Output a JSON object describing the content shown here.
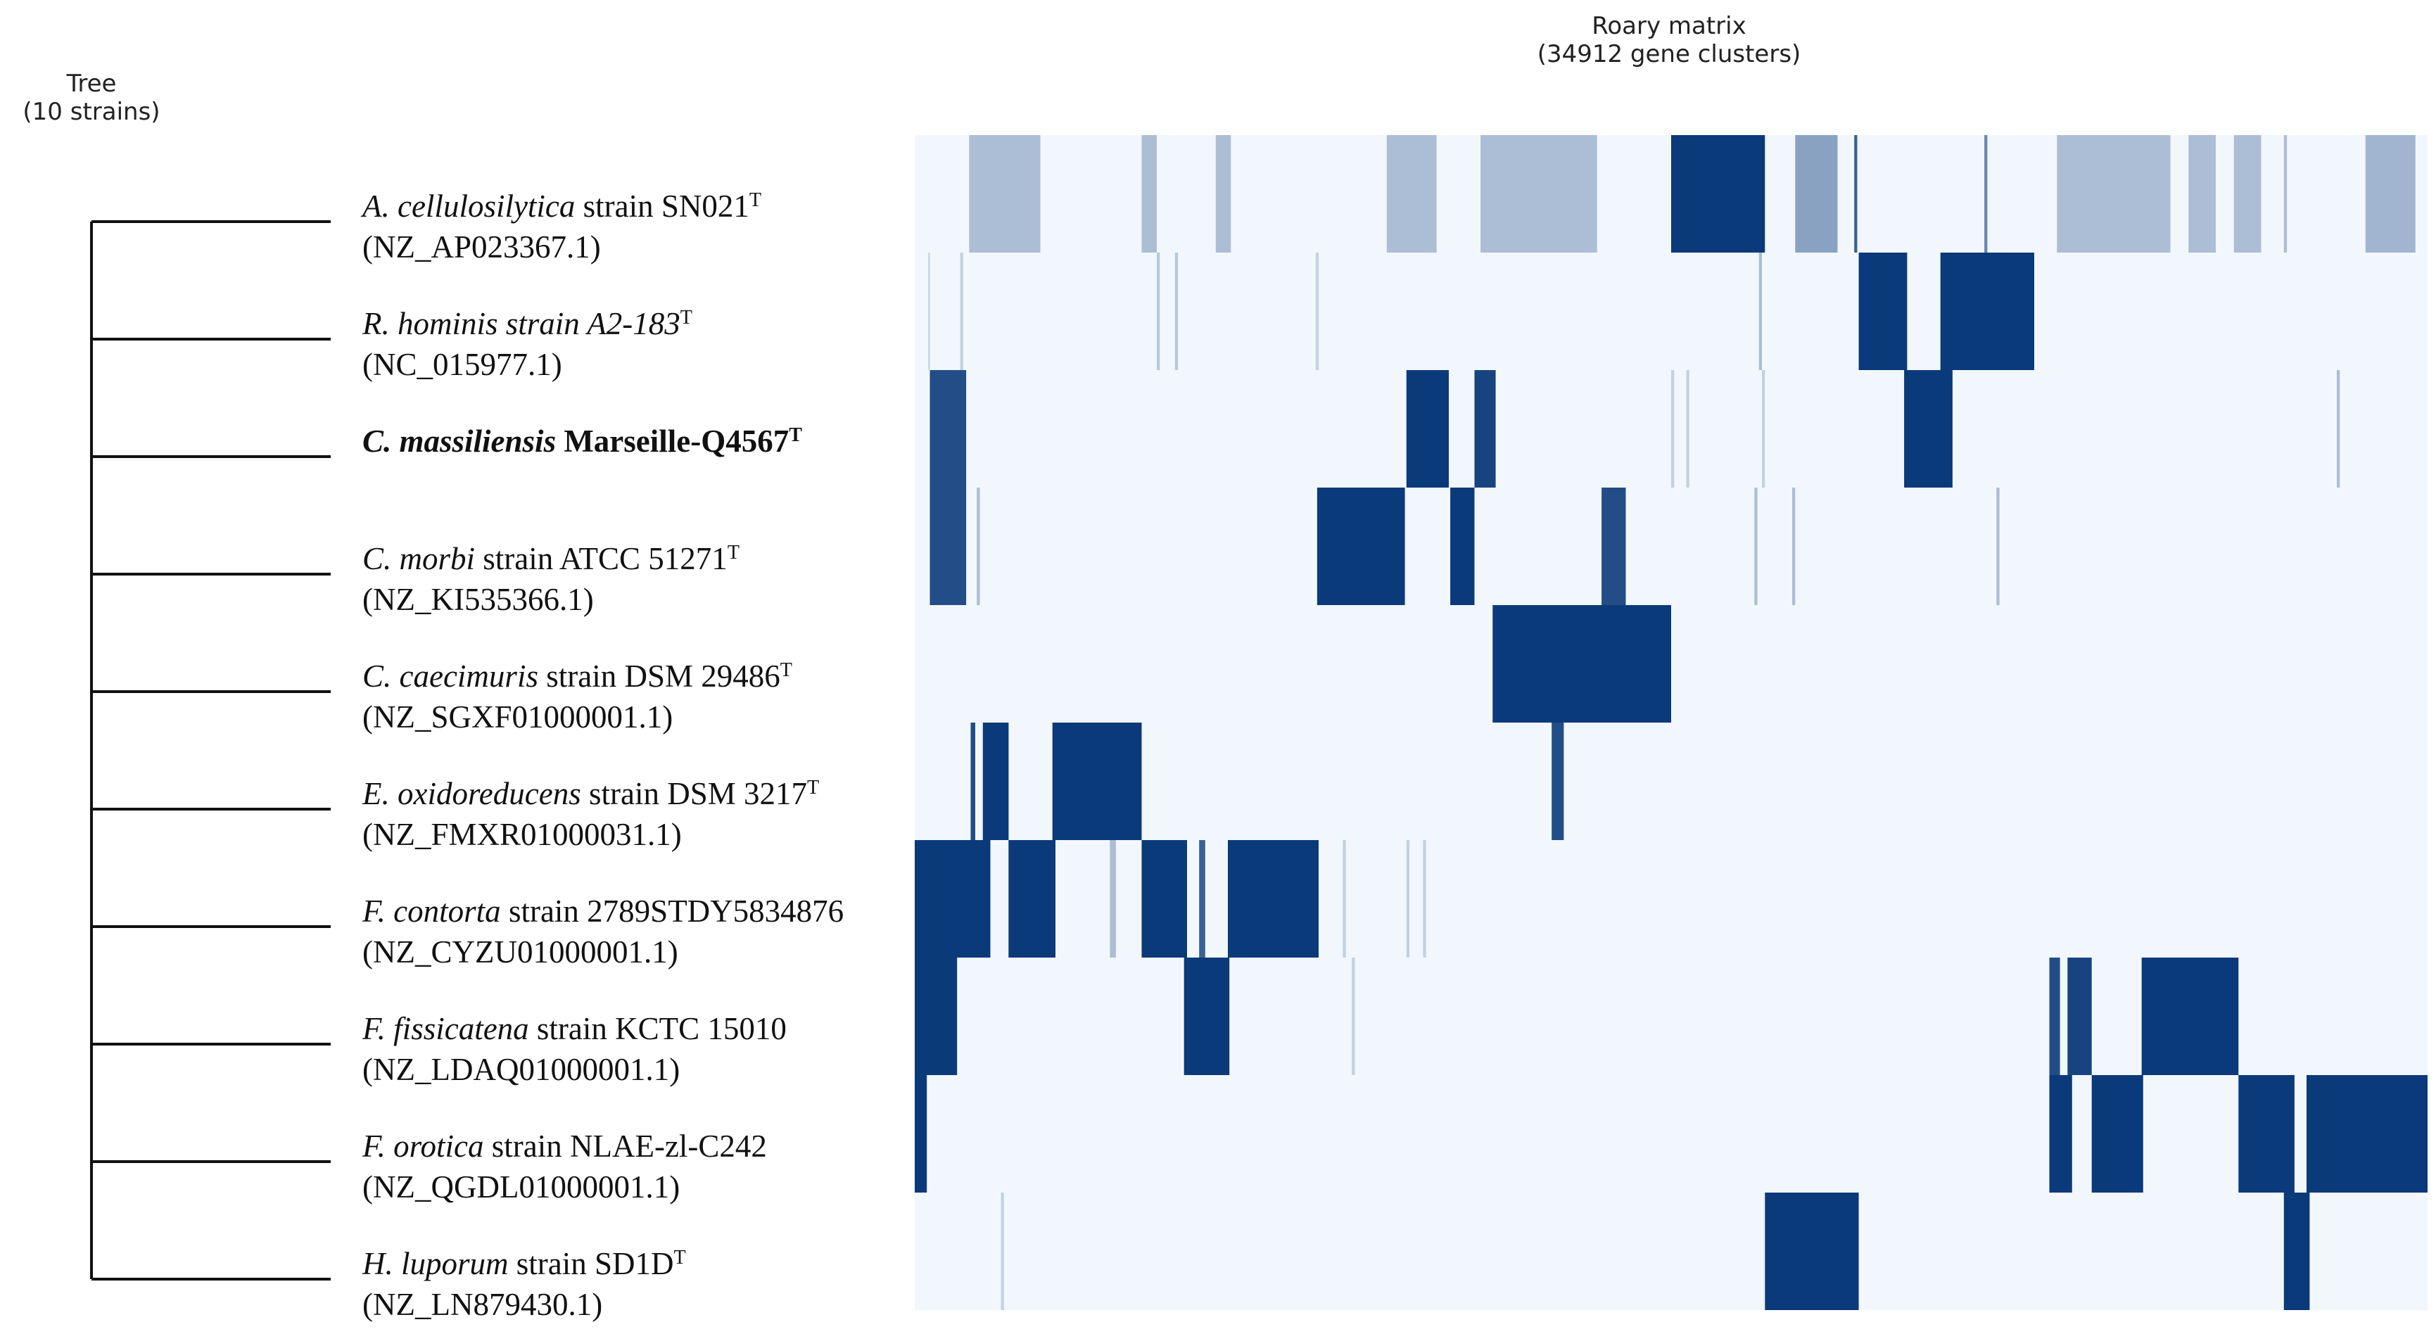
{
  "tree_header": {
    "title": "Tree",
    "subtitle": "(10 strains)"
  },
  "matrix_header": {
    "title": "Roary matrix",
    "subtitle": "(34912 gene clusters)"
  },
  "colors": {
    "background": "#f2f7fd",
    "presence": "#0b3a7a",
    "line": "#111111"
  },
  "strains": [
    {
      "species": "A. cellulosilytica",
      "label": " strain SN021",
      "sup": "T",
      "accession": "(NZ_AP023367.1)",
      "bold": false,
      "segments": [
        [
          0.036,
          0.083,
          0.3
        ],
        [
          0.15,
          0.16,
          0.3
        ],
        [
          0.199,
          0.209,
          0.3
        ],
        [
          0.312,
          0.345,
          0.3
        ],
        [
          0.374,
          0.451,
          0.3
        ],
        [
          0.5,
          0.562,
          1
        ],
        [
          0.582,
          0.61,
          0.45
        ],
        [
          0.621,
          0.623,
          0.8
        ],
        [
          0.707,
          0.709,
          0.6
        ],
        [
          0.755,
          0.83,
          0.3
        ],
        [
          0.842,
          0.86,
          0.3
        ],
        [
          0.872,
          0.89,
          0.3
        ],
        [
          0.905,
          0.907,
          0.3
        ],
        [
          0.959,
          0.992,
          0.35
        ]
      ]
    },
    {
      "species": "R. hominis",
      "label": " strain A2-183",
      "sup": "T",
      "accession": "(NC_015977.1)",
      "bold": false,
      "italicLabel": true,
      "segments": [
        [
          0.009,
          0.01,
          0.2
        ],
        [
          0.03,
          0.032,
          0.2
        ],
        [
          0.16,
          0.162,
          0.25
        ],
        [
          0.172,
          0.174,
          0.25
        ],
        [
          0.265,
          0.267,
          0.2
        ],
        [
          0.558,
          0.56,
          0.3
        ],
        [
          0.624,
          0.656,
          1
        ],
        [
          0.678,
          0.74,
          1
        ]
      ]
    },
    {
      "species": "C. massiliensis",
      "label": " Marseille-Q4567",
      "sup": "T",
      "accession": "",
      "bold": true,
      "segments": [
        [
          0.01,
          0.034,
          0.9
        ],
        [
          0.325,
          0.353,
          1
        ],
        [
          0.37,
          0.384,
          0.95
        ],
        [
          0.5,
          0.502,
          0.2
        ],
        [
          0.51,
          0.512,
          0.2
        ],
        [
          0.56,
          0.562,
          0.2
        ],
        [
          0.654,
          0.686,
          1
        ],
        [
          0.94,
          0.942,
          0.3
        ]
      ]
    },
    {
      "species": "C. morbi",
      "label": " strain ATCC 51271",
      "sup": "T",
      "accession": "(NZ_KI535366.1)",
      "bold": false,
      "segments": [
        [
          0.01,
          0.034,
          0.9
        ],
        [
          0.041,
          0.043,
          0.3
        ],
        [
          0.266,
          0.324,
          1
        ],
        [
          0.354,
          0.37,
          1
        ],
        [
          0.454,
          0.47,
          0.9
        ],
        [
          0.555,
          0.557,
          0.3
        ],
        [
          0.58,
          0.582,
          0.3
        ],
        [
          0.715,
          0.717,
          0.3
        ]
      ]
    },
    {
      "species": "C. caecimuris",
      "label": " strain DSM 29486",
      "sup": "T",
      "accession": "(NZ_SGXF01000001.1)",
      "bold": false,
      "segments": [
        [
          0.382,
          0.5,
          1
        ]
      ]
    },
    {
      "species": "E. oxidoreducens",
      "label": " strain DSM 3217",
      "sup": "T",
      "accession": "(NZ_FMXR01000031.1)",
      "bold": false,
      "segments": [
        [
          0.037,
          0.04,
          0.9
        ],
        [
          0.045,
          0.062,
          1
        ],
        [
          0.091,
          0.15,
          1
        ],
        [
          0.421,
          0.429,
          0.9
        ]
      ]
    },
    {
      "species": "F. contorta",
      "label": " strain 2789STDY5834876",
      "sup": "",
      "accession": "(NZ_CYZU01000001.1)",
      "bold": false,
      "segments": [
        [
          0.0,
          0.05,
          1
        ],
        [
          0.062,
          0.093,
          1
        ],
        [
          0.129,
          0.133,
          0.3
        ],
        [
          0.15,
          0.18,
          1
        ],
        [
          0.188,
          0.192,
          0.8
        ],
        [
          0.207,
          0.267,
          1
        ],
        [
          0.283,
          0.285,
          0.2
        ],
        [
          0.325,
          0.327,
          0.2
        ],
        [
          0.336,
          0.338,
          0.2
        ]
      ]
    },
    {
      "species": "F. fissicatena",
      "label": " strain KCTC 15010",
      "sup": "",
      "accession": "(NZ_LDAQ01000001.1)",
      "bold": false,
      "segments": [
        [
          0.0,
          0.028,
          1
        ],
        [
          0.178,
          0.208,
          1
        ],
        [
          0.289,
          0.291,
          0.2
        ],
        [
          0.75,
          0.757,
          0.9
        ],
        [
          0.762,
          0.778,
          0.95
        ],
        [
          0.811,
          0.875,
          1
        ]
      ]
    },
    {
      "species": "F. orotica",
      "label": " strain NLAE-zl-C242",
      "sup": "",
      "accession": "(NZ_QGDL01000001.1)",
      "bold": false,
      "segments": [
        [
          0.0,
          0.008,
          1
        ],
        [
          0.75,
          0.765,
          1
        ],
        [
          0.778,
          0.812,
          1
        ],
        [
          0.875,
          0.912,
          1
        ],
        [
          0.92,
          1.0,
          1
        ]
      ]
    },
    {
      "species": "H. luporum",
      "label": " strain SD1D",
      "sup": "T",
      "accession": "(NZ_LN879430.1)",
      "bold": false,
      "segments": [
        [
          0.057,
          0.059,
          0.2
        ],
        [
          0.562,
          0.624,
          1
        ],
        [
          0.905,
          0.922,
          1
        ]
      ]
    }
  ]
}
